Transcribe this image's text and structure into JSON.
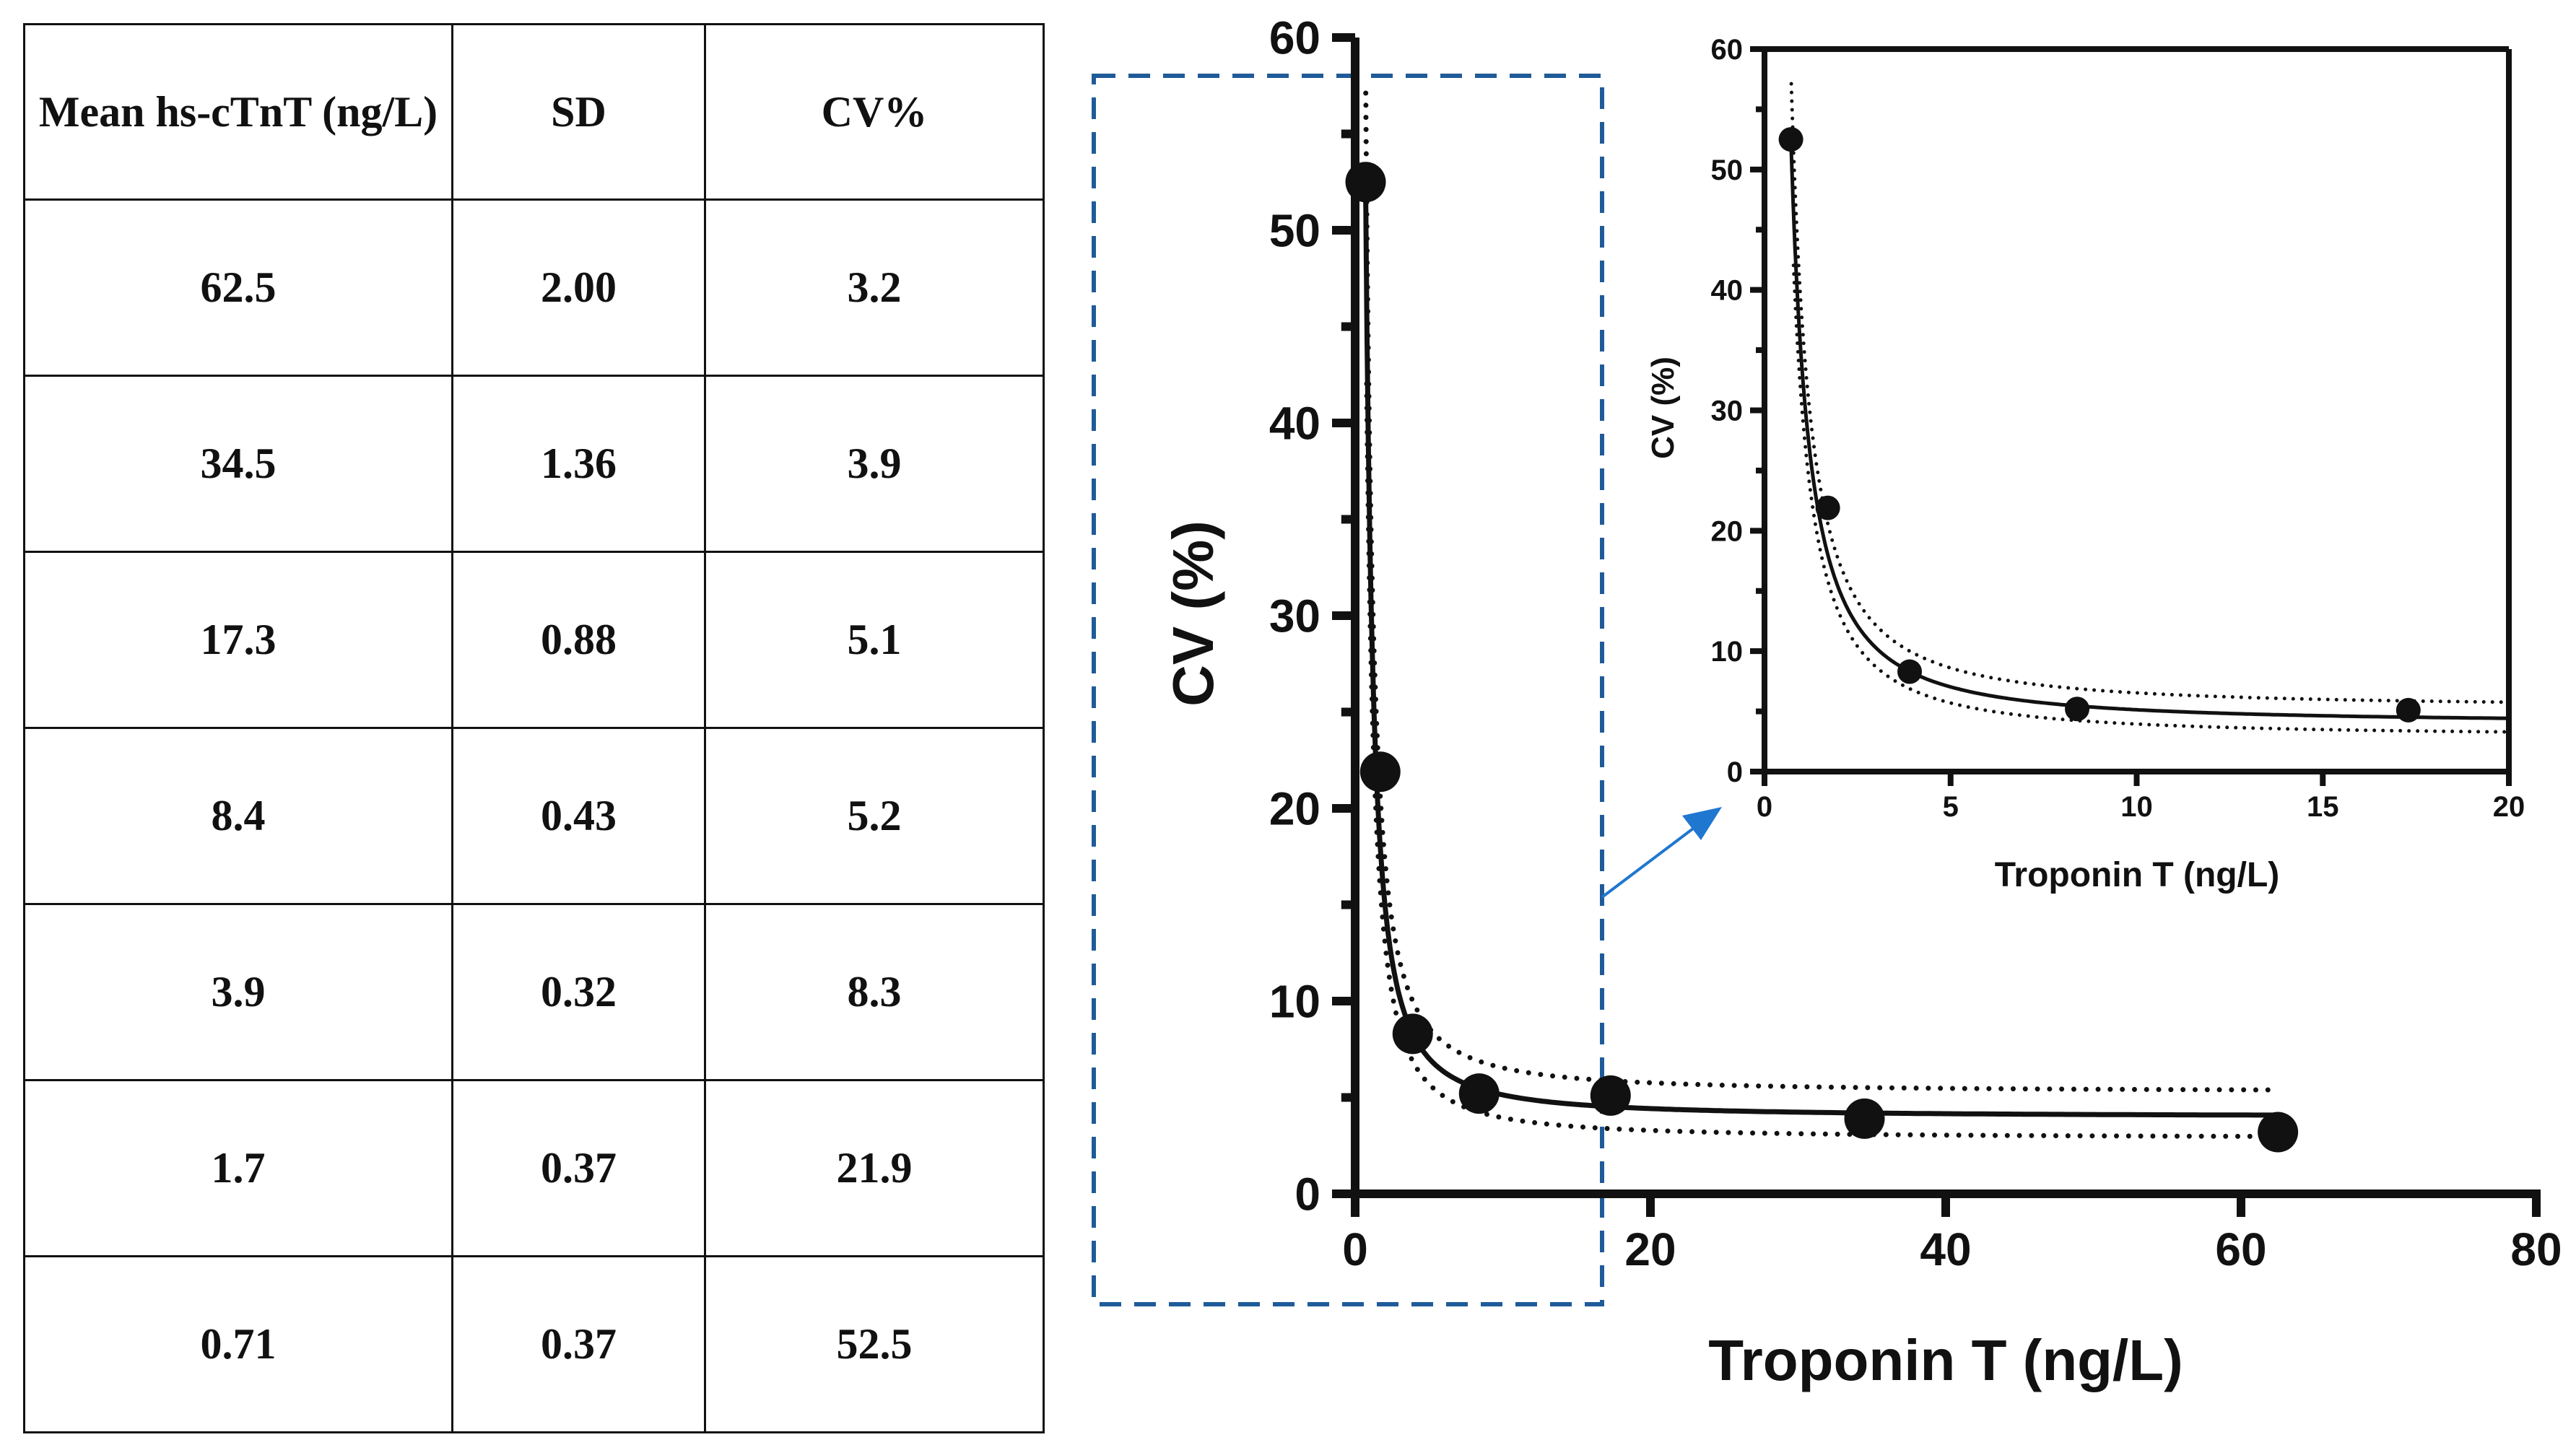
{
  "table": {
    "headers": [
      "Mean hs-cTnT (ng/L)",
      "SD",
      "CV%"
    ],
    "rows": [
      [
        "62.5",
        "2.00",
        "3.2"
      ],
      [
        "34.5",
        "1.36",
        "3.9"
      ],
      [
        "17.3",
        "0.88",
        "5.1"
      ],
      [
        "8.4",
        "0.43",
        "5.2"
      ],
      [
        "3.9",
        "0.32",
        "8.3"
      ],
      [
        "1.7",
        "0.37",
        "21.9"
      ],
      [
        "0.71",
        "0.37",
        "52.5"
      ]
    ]
  },
  "chart_data": [
    {
      "type": "scatter",
      "xlabel": "Troponin T (ng/L)",
      "ylabel": "CV (%)",
      "xlim": [
        0,
        80
      ],
      "ylim": [
        0,
        60
      ],
      "xticks": [
        "0",
        "20",
        "40",
        "60",
        "80"
      ],
      "yticks": [
        "0",
        "10",
        "20",
        "30",
        "40",
        "50",
        "60"
      ],
      "x": [
        0.71,
        1.7,
        3.9,
        8.4,
        17.3,
        34.5,
        62.5
      ],
      "y": [
        52.5,
        21.9,
        8.3,
        5.2,
        5.1,
        3.9,
        3.2
      ],
      "fit": "solid curve with dotted confidence bands",
      "grid": false
    },
    {
      "type": "scatter",
      "role": "inset zoom of 0-20 ng/L region",
      "xlabel": "Troponin T (ng/L)",
      "ylabel": "CV (%)",
      "xlim": [
        0,
        20
      ],
      "ylim": [
        0,
        60
      ],
      "xticks": [
        "0",
        "5",
        "10",
        "15",
        "20"
      ],
      "yticks": [
        "0",
        "10",
        "20",
        "30",
        "40",
        "50",
        "60"
      ],
      "x": [
        0.71,
        1.7,
        3.9,
        8.4,
        17.3
      ],
      "y": [
        52.5,
        21.9,
        8.3,
        5.2,
        5.1
      ],
      "fit": "solid curve with dotted confidence bands",
      "grid": false
    }
  ],
  "colors": {
    "highlight_box": "#1f5b99",
    "arrow": "#1f77d0",
    "ink": "#111111"
  }
}
